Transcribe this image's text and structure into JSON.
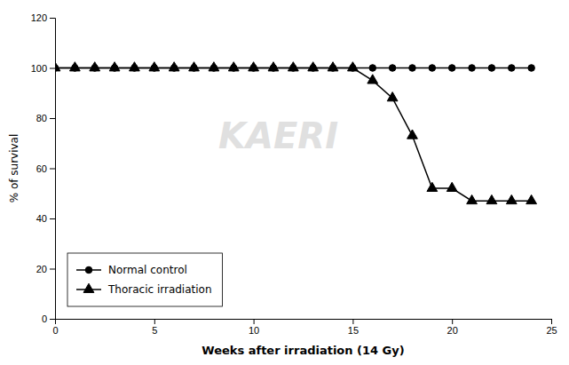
{
  "chart_data": {
    "type": "line",
    "x": [
      0,
      1,
      2,
      3,
      4,
      5,
      6,
      7,
      8,
      9,
      10,
      11,
      12,
      13,
      14,
      15,
      16,
      17,
      18,
      19,
      20,
      21,
      22,
      23,
      24
    ],
    "series": [
      {
        "name": "Normal control",
        "color": "#000000",
        "marker": "circle",
        "values": [
          100,
          100,
          100,
          100,
          100,
          100,
          100,
          100,
          100,
          100,
          100,
          100,
          100,
          100,
          100,
          100,
          100,
          100,
          100,
          100,
          100,
          100,
          100,
          100,
          100
        ]
      },
      {
        "name": "Thoracic irradiation",
        "color": "#000000",
        "marker": "triangle",
        "values": [
          100,
          100,
          100,
          100,
          100,
          100,
          100,
          100,
          100,
          100,
          100,
          100,
          100,
          100,
          100,
          100,
          95,
          88,
          73,
          52,
          52,
          47,
          47,
          47,
          47
        ]
      }
    ],
    "xlabel": "Weeks after irradiation (14 Gy)",
    "ylabel": "% of survival",
    "xlim": [
      0,
      25
    ],
    "ylim": [
      0,
      120
    ],
    "xticks": [
      0,
      5,
      10,
      15,
      20,
      25
    ],
    "yticks": [
      0,
      20,
      40,
      60,
      80,
      100,
      120
    ],
    "grid": false,
    "legend": "lower left",
    "annotations": [
      {
        "text": "KAERI",
        "color": "#cccccc"
      }
    ]
  }
}
